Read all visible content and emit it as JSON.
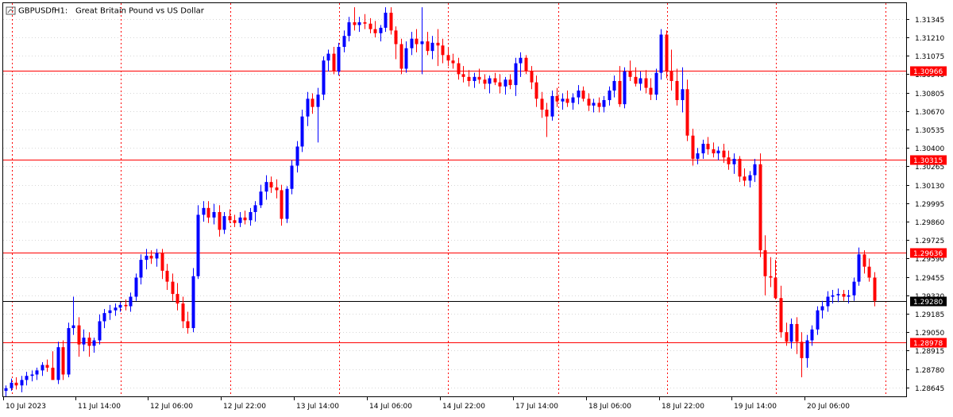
{
  "header": {
    "symbol": "GBPUSDf",
    "timeframe": "H1:",
    "description": "Great Britain Pound vs US Dollar"
  },
  "colors": {
    "bull": "#0000ff",
    "bear": "#ff0000",
    "level_line": "#ff0000",
    "current_line": "#000000",
    "grid": "#d7d7d7",
    "session_separator": "#ff0000"
  },
  "price_axis": {
    "ticks": [
      "1.31345",
      "1.31210",
      "1.31075",
      "1.30940",
      "1.30805",
      "1.30670",
      "1.30535",
      "1.30400",
      "1.30265",
      "1.30130",
      "1.29995",
      "1.29860",
      "1.29725",
      "1.29590",
      "1.29455",
      "1.29320",
      "1.29185",
      "1.29050",
      "1.28915",
      "1.28780",
      "1.28645"
    ]
  },
  "time_axis": {
    "ticks": [
      "10 Jul 2023",
      "11 Jul 14:00",
      "12 Jul 06:00",
      "12 Jul 22:00",
      "13 Jul 14:00",
      "14 Jul 06:00",
      "14 Jul 22:00",
      "17 Jul 14:00",
      "18 Jul 06:00",
      "18 Jul 22:00",
      "19 Jul 14:00",
      "20 Jul 06:00"
    ]
  },
  "levels": [
    {
      "price": 1.30966,
      "label": "1.30966",
      "kind": "resistance"
    },
    {
      "price": 1.30315,
      "label": "1.30315",
      "kind": "resistance"
    },
    {
      "price": 1.29636,
      "label": "1.29636",
      "kind": "resistance"
    },
    {
      "price": 1.28978,
      "label": "1.28978",
      "kind": "support"
    },
    {
      "price": 1.2928,
      "label": "1.29280",
      "kind": "current"
    }
  ],
  "chart_data": {
    "type": "candlestick",
    "title": "GBPUSDf, H1: Great Britain Pound vs US Dollar",
    "ylim": [
      1.2858,
      1.3146
    ],
    "candles": [
      {
        "o": 1.2862,
        "h": 1.2866,
        "l": 1.2858,
        "c": 1.2864
      },
      {
        "o": 1.2864,
        "h": 1.2871,
        "l": 1.2862,
        "c": 1.2868
      },
      {
        "o": 1.2868,
        "h": 1.2872,
        "l": 1.2863,
        "c": 1.2866
      },
      {
        "o": 1.2866,
        "h": 1.2873,
        "l": 1.2861,
        "c": 1.287
      },
      {
        "o": 1.287,
        "h": 1.2876,
        "l": 1.2866,
        "c": 1.2873
      },
      {
        "o": 1.2873,
        "h": 1.2877,
        "l": 1.2869,
        "c": 1.2874
      },
      {
        "o": 1.2874,
        "h": 1.2879,
        "l": 1.287,
        "c": 1.2877
      },
      {
        "o": 1.2877,
        "h": 1.2883,
        "l": 1.2873,
        "c": 1.2881
      },
      {
        "o": 1.2881,
        "h": 1.2885,
        "l": 1.2876,
        "c": 1.2879
      },
      {
        "o": 1.2879,
        "h": 1.2891,
        "l": 1.2872,
        "c": 1.287
      },
      {
        "o": 1.287,
        "h": 1.2898,
        "l": 1.2867,
        "c": 1.2894
      },
      {
        "o": 1.2894,
        "h": 1.2899,
        "l": 1.287,
        "c": 1.2874
      },
      {
        "o": 1.2874,
        "h": 1.2912,
        "l": 1.2872,
        "c": 1.2908
      },
      {
        "o": 1.2908,
        "h": 1.2931,
        "l": 1.2903,
        "c": 1.291
      },
      {
        "o": 1.291,
        "h": 1.2916,
        "l": 1.2887,
        "c": 1.2896
      },
      {
        "o": 1.2896,
        "h": 1.2907,
        "l": 1.2891,
        "c": 1.2901
      },
      {
        "o": 1.2901,
        "h": 1.2905,
        "l": 1.2887,
        "c": 1.2895
      },
      {
        "o": 1.2895,
        "h": 1.2901,
        "l": 1.289,
        "c": 1.2899
      },
      {
        "o": 1.2899,
        "h": 1.2918,
        "l": 1.2896,
        "c": 1.2913
      },
      {
        "o": 1.2913,
        "h": 1.2922,
        "l": 1.2908,
        "c": 1.2919
      },
      {
        "o": 1.2919,
        "h": 1.2925,
        "l": 1.2914,
        "c": 1.2921
      },
      {
        "o": 1.2921,
        "h": 1.2926,
        "l": 1.2917,
        "c": 1.2923
      },
      {
        "o": 1.2923,
        "h": 1.2927,
        "l": 1.292,
        "c": 1.2925
      },
      {
        "o": 1.2925,
        "h": 1.2929,
        "l": 1.2921,
        "c": 1.2924
      },
      {
        "o": 1.2924,
        "h": 1.2934,
        "l": 1.292,
        "c": 1.2931
      },
      {
        "o": 1.2931,
        "h": 1.2948,
        "l": 1.2928,
        "c": 1.2945
      },
      {
        "o": 1.2945,
        "h": 1.2962,
        "l": 1.294,
        "c": 1.2958
      },
      {
        "o": 1.2958,
        "h": 1.2966,
        "l": 1.2951,
        "c": 1.2961
      },
      {
        "o": 1.2961,
        "h": 1.2965,
        "l": 1.2955,
        "c": 1.2959
      },
      {
        "o": 1.2959,
        "h": 1.2966,
        "l": 1.2953,
        "c": 1.2963
      },
      {
        "o": 1.2963,
        "h": 1.2966,
        "l": 1.2944,
        "c": 1.295
      },
      {
        "o": 1.295,
        "h": 1.2955,
        "l": 1.2936,
        "c": 1.2942
      },
      {
        "o": 1.2942,
        "h": 1.2948,
        "l": 1.2928,
        "c": 1.2933
      },
      {
        "o": 1.2933,
        "h": 1.2941,
        "l": 1.2921,
        "c": 1.2926
      },
      {
        "o": 1.2926,
        "h": 1.2931,
        "l": 1.2908,
        "c": 1.2913
      },
      {
        "o": 1.2913,
        "h": 1.292,
        "l": 1.2904,
        "c": 1.2908
      },
      {
        "o": 1.2908,
        "h": 1.2952,
        "l": 1.2905,
        "c": 1.2946
      },
      {
        "o": 1.2946,
        "h": 1.2998,
        "l": 1.2944,
        "c": 1.2991
      },
      {
        "o": 1.2991,
        "h": 1.3001,
        "l": 1.2986,
        "c": 1.2996
      },
      {
        "o": 1.2996,
        "h": 1.3001,
        "l": 1.2985,
        "c": 1.2989
      },
      {
        "o": 1.2989,
        "h": 1.2999,
        "l": 1.2984,
        "c": 1.2993
      },
      {
        "o": 1.2993,
        "h": 1.2998,
        "l": 1.2975,
        "c": 1.298
      },
      {
        "o": 1.298,
        "h": 1.2993,
        "l": 1.2977,
        "c": 1.299
      },
      {
        "o": 1.299,
        "h": 1.2995,
        "l": 1.2985,
        "c": 1.2987
      },
      {
        "o": 1.2987,
        "h": 1.2991,
        "l": 1.2982,
        "c": 1.2985
      },
      {
        "o": 1.2985,
        "h": 1.2993,
        "l": 1.2982,
        "c": 1.2989
      },
      {
        "o": 1.2989,
        "h": 1.2994,
        "l": 1.2984,
        "c": 1.2987
      },
      {
        "o": 1.2987,
        "h": 1.2996,
        "l": 1.2983,
        "c": 1.2993
      },
      {
        "o": 1.2993,
        "h": 1.3001,
        "l": 1.2986,
        "c": 1.2998
      },
      {
        "o": 1.2998,
        "h": 1.3013,
        "l": 1.2996,
        "c": 1.3008
      },
      {
        "o": 1.3008,
        "h": 1.302,
        "l": 1.3002,
        "c": 1.3015
      },
      {
        "o": 1.3015,
        "h": 1.3019,
        "l": 1.3007,
        "c": 1.3011
      },
      {
        "o": 1.3011,
        "h": 1.3017,
        "l": 1.3003,
        "c": 1.3009
      },
      {
        "o": 1.3009,
        "h": 1.3013,
        "l": 1.2983,
        "c": 1.2988
      },
      {
        "o": 1.2988,
        "h": 1.3012,
        "l": 1.2985,
        "c": 1.301
      },
      {
        "o": 1.301,
        "h": 1.3031,
        "l": 1.3006,
        "c": 1.3027
      },
      {
        "o": 1.3027,
        "h": 1.3045,
        "l": 1.3022,
        "c": 1.3041
      },
      {
        "o": 1.3041,
        "h": 1.3068,
        "l": 1.3037,
        "c": 1.3063
      },
      {
        "o": 1.3063,
        "h": 1.3081,
        "l": 1.3056,
        "c": 1.3076
      },
      {
        "o": 1.3076,
        "h": 1.308,
        "l": 1.3065,
        "c": 1.307
      },
      {
        "o": 1.307,
        "h": 1.3084,
        "l": 1.3044,
        "c": 1.3079
      },
      {
        "o": 1.3079,
        "h": 1.3107,
        "l": 1.3075,
        "c": 1.3104
      },
      {
        "o": 1.3104,
        "h": 1.3112,
        "l": 1.3096,
        "c": 1.3109
      },
      {
        "o": 1.3109,
        "h": 1.3114,
        "l": 1.3094,
        "c": 1.3096
      },
      {
        "o": 1.3096,
        "h": 1.3117,
        "l": 1.3093,
        "c": 1.3114
      },
      {
        "o": 1.3114,
        "h": 1.3126,
        "l": 1.311,
        "c": 1.3122
      },
      {
        "o": 1.3122,
        "h": 1.3136,
        "l": 1.3118,
        "c": 1.3132
      },
      {
        "o": 1.3132,
        "h": 1.3143,
        "l": 1.3126,
        "c": 1.313
      },
      {
        "o": 1.313,
        "h": 1.3136,
        "l": 1.3125,
        "c": 1.3132
      },
      {
        "o": 1.3132,
        "h": 1.3138,
        "l": 1.3127,
        "c": 1.3131
      },
      {
        "o": 1.3131,
        "h": 1.3135,
        "l": 1.3124,
        "c": 1.3127
      },
      {
        "o": 1.3127,
        "h": 1.3133,
        "l": 1.3121,
        "c": 1.3124
      },
      {
        "o": 1.3124,
        "h": 1.313,
        "l": 1.3118,
        "c": 1.3128
      },
      {
        "o": 1.3128,
        "h": 1.3143,
        "l": 1.3125,
        "c": 1.3139
      },
      {
        "o": 1.3139,
        "h": 1.3143,
        "l": 1.3123,
        "c": 1.3126
      },
      {
        "o": 1.3126,
        "h": 1.3129,
        "l": 1.3105,
        "c": 1.3116
      },
      {
        "o": 1.3116,
        "h": 1.312,
        "l": 1.3094,
        "c": 1.3098
      },
      {
        "o": 1.3098,
        "h": 1.3118,
        "l": 1.3095,
        "c": 1.3113
      },
      {
        "o": 1.3113,
        "h": 1.3125,
        "l": 1.3108,
        "c": 1.312
      },
      {
        "o": 1.312,
        "h": 1.3127,
        "l": 1.311,
        "c": 1.3116
      },
      {
        "o": 1.3116,
        "h": 1.3143,
        "l": 1.3094,
        "c": 1.3118
      },
      {
        "o": 1.3118,
        "h": 1.3125,
        "l": 1.3108,
        "c": 1.3111
      },
      {
        "o": 1.3111,
        "h": 1.3122,
        "l": 1.3105,
        "c": 1.3117
      },
      {
        "o": 1.3117,
        "h": 1.3127,
        "l": 1.31,
        "c": 1.3115
      },
      {
        "o": 1.3115,
        "h": 1.312,
        "l": 1.3102,
        "c": 1.3108
      },
      {
        "o": 1.3108,
        "h": 1.3114,
        "l": 1.31,
        "c": 1.3104
      },
      {
        "o": 1.3104,
        "h": 1.3109,
        "l": 1.3098,
        "c": 1.3102
      },
      {
        "o": 1.3102,
        "h": 1.3106,
        "l": 1.309,
        "c": 1.3094
      },
      {
        "o": 1.3094,
        "h": 1.31,
        "l": 1.3088,
        "c": 1.3092
      },
      {
        "o": 1.3092,
        "h": 1.3097,
        "l": 1.3085,
        "c": 1.3089
      },
      {
        "o": 1.3089,
        "h": 1.3095,
        "l": 1.3084,
        "c": 1.3092
      },
      {
        "o": 1.3092,
        "h": 1.3098,
        "l": 1.3087,
        "c": 1.309
      },
      {
        "o": 1.309,
        "h": 1.3094,
        "l": 1.3083,
        "c": 1.3087
      },
      {
        "o": 1.3087,
        "h": 1.3093,
        "l": 1.308,
        "c": 1.3091
      },
      {
        "o": 1.3091,
        "h": 1.3095,
        "l": 1.3086,
        "c": 1.3088
      },
      {
        "o": 1.3088,
        "h": 1.3094,
        "l": 1.308,
        "c": 1.3085
      },
      {
        "o": 1.3085,
        "h": 1.3092,
        "l": 1.3079,
        "c": 1.309
      },
      {
        "o": 1.309,
        "h": 1.3094,
        "l": 1.3083,
        "c": 1.3086
      },
      {
        "o": 1.3086,
        "h": 1.3106,
        "l": 1.3078,
        "c": 1.3102
      },
      {
        "o": 1.3102,
        "h": 1.311,
        "l": 1.3092,
        "c": 1.3106
      },
      {
        "o": 1.3106,
        "h": 1.3108,
        "l": 1.3094,
        "c": 1.3096
      },
      {
        "o": 1.3096,
        "h": 1.31,
        "l": 1.3083,
        "c": 1.3088
      },
      {
        "o": 1.3088,
        "h": 1.3093,
        "l": 1.307,
        "c": 1.3076
      },
      {
        "o": 1.3076,
        "h": 1.3081,
        "l": 1.3062,
        "c": 1.3068
      },
      {
        "o": 1.3068,
        "h": 1.3073,
        "l": 1.3048,
        "c": 1.3063
      },
      {
        "o": 1.3063,
        "h": 1.3082,
        "l": 1.306,
        "c": 1.3078
      },
      {
        "o": 1.3078,
        "h": 1.3084,
        "l": 1.307,
        "c": 1.3074
      },
      {
        "o": 1.3074,
        "h": 1.308,
        "l": 1.3068,
        "c": 1.3076
      },
      {
        "o": 1.3076,
        "h": 1.3082,
        "l": 1.307,
        "c": 1.3073
      },
      {
        "o": 1.3073,
        "h": 1.308,
        "l": 1.3068,
        "c": 1.3077
      },
      {
        "o": 1.3077,
        "h": 1.3086,
        "l": 1.3072,
        "c": 1.3082
      },
      {
        "o": 1.3082,
        "h": 1.3085,
        "l": 1.3074,
        "c": 1.3076
      },
      {
        "o": 1.3076,
        "h": 1.308,
        "l": 1.3067,
        "c": 1.3071
      },
      {
        "o": 1.3071,
        "h": 1.3076,
        "l": 1.3066,
        "c": 1.3073
      },
      {
        "o": 1.3073,
        "h": 1.3077,
        "l": 1.3066,
        "c": 1.307
      },
      {
        "o": 1.307,
        "h": 1.3078,
        "l": 1.3066,
        "c": 1.3075
      },
      {
        "o": 1.3075,
        "h": 1.3085,
        "l": 1.3071,
        "c": 1.3082
      },
      {
        "o": 1.3082,
        "h": 1.3093,
        "l": 1.3077,
        "c": 1.3089
      },
      {
        "o": 1.3089,
        "h": 1.31,
        "l": 1.307,
        "c": 1.3072
      },
      {
        "o": 1.3072,
        "h": 1.3099,
        "l": 1.3069,
        "c": 1.3096
      },
      {
        "o": 1.3096,
        "h": 1.3104,
        "l": 1.3089,
        "c": 1.3092
      },
      {
        "o": 1.3092,
        "h": 1.3099,
        "l": 1.3085,
        "c": 1.3087
      },
      {
        "o": 1.3087,
        "h": 1.3096,
        "l": 1.3082,
        "c": 1.3091
      },
      {
        "o": 1.3091,
        "h": 1.3097,
        "l": 1.308,
        "c": 1.3084
      },
      {
        "o": 1.3084,
        "h": 1.3091,
        "l": 1.3075,
        "c": 1.3079
      },
      {
        "o": 1.3079,
        "h": 1.3098,
        "l": 1.3075,
        "c": 1.3095
      },
      {
        "o": 1.3095,
        "h": 1.3127,
        "l": 1.309,
        "c": 1.3123
      },
      {
        "o": 1.3123,
        "h": 1.3126,
        "l": 1.3091,
        "c": 1.3096
      },
      {
        "o": 1.3096,
        "h": 1.3112,
        "l": 1.3082,
        "c": 1.3089
      },
      {
        "o": 1.3089,
        "h": 1.3098,
        "l": 1.3071,
        "c": 1.3075
      },
      {
        "o": 1.3075,
        "h": 1.3099,
        "l": 1.3066,
        "c": 1.3083
      },
      {
        "o": 1.3083,
        "h": 1.309,
        "l": 1.3045,
        "c": 1.3049
      },
      {
        "o": 1.3049,
        "h": 1.3054,
        "l": 1.3027,
        "c": 1.3032
      },
      {
        "o": 1.3032,
        "h": 1.304,
        "l": 1.3028,
        "c": 1.3036
      },
      {
        "o": 1.3036,
        "h": 1.3046,
        "l": 1.3032,
        "c": 1.3043
      },
      {
        "o": 1.3043,
        "h": 1.3048,
        "l": 1.3035,
        "c": 1.3039
      },
      {
        "o": 1.3039,
        "h": 1.3044,
        "l": 1.3033,
        "c": 1.3036
      },
      {
        "o": 1.3036,
        "h": 1.3041,
        "l": 1.3031,
        "c": 1.3038
      },
      {
        "o": 1.3038,
        "h": 1.3043,
        "l": 1.3029,
        "c": 1.3033
      },
      {
        "o": 1.3033,
        "h": 1.3038,
        "l": 1.3024,
        "c": 1.3028
      },
      {
        "o": 1.3028,
        "h": 1.3036,
        "l": 1.3021,
        "c": 1.3032
      },
      {
        "o": 1.3032,
        "h": 1.3034,
        "l": 1.3015,
        "c": 1.3019
      },
      {
        "o": 1.3019,
        "h": 1.3025,
        "l": 1.3012,
        "c": 1.3016
      },
      {
        "o": 1.3016,
        "h": 1.3023,
        "l": 1.3011,
        "c": 1.302
      },
      {
        "o": 1.302,
        "h": 1.3032,
        "l": 1.3015,
        "c": 1.3028
      },
      {
        "o": 1.3028,
        "h": 1.3036,
        "l": 1.296,
        "c": 1.2965
      },
      {
        "o": 1.2965,
        "h": 1.2976,
        "l": 1.2932,
        "c": 1.2946
      },
      {
        "o": 1.2946,
        "h": 1.296,
        "l": 1.2938,
        "c": 1.2945
      },
      {
        "o": 1.2945,
        "h": 1.2958,
        "l": 1.2929,
        "c": 1.293
      },
      {
        "o": 1.293,
        "h": 1.2939,
        "l": 1.2901,
        "c": 1.2905
      },
      {
        "o": 1.2905,
        "h": 1.2912,
        "l": 1.2895,
        "c": 1.2898
      },
      {
        "o": 1.2898,
        "h": 1.2915,
        "l": 1.2893,
        "c": 1.2911
      },
      {
        "o": 1.2911,
        "h": 1.2916,
        "l": 1.2889,
        "c": 1.2898
      },
      {
        "o": 1.2898,
        "h": 1.2905,
        "l": 1.2872,
        "c": 1.2886
      },
      {
        "o": 1.2886,
        "h": 1.2903,
        "l": 1.2879,
        "c": 1.2899
      },
      {
        "o": 1.2899,
        "h": 1.291,
        "l": 1.2895,
        "c": 1.2907
      },
      {
        "o": 1.2907,
        "h": 1.2924,
        "l": 1.2903,
        "c": 1.2921
      },
      {
        "o": 1.2921,
        "h": 1.2928,
        "l": 1.2915,
        "c": 1.2924
      },
      {
        "o": 1.2924,
        "h": 1.2935,
        "l": 1.292,
        "c": 1.2931
      },
      {
        "o": 1.2931,
        "h": 1.2936,
        "l": 1.2926,
        "c": 1.2932
      },
      {
        "o": 1.2932,
        "h": 1.2937,
        "l": 1.2927,
        "c": 1.2933
      },
      {
        "o": 1.2933,
        "h": 1.2936,
        "l": 1.2928,
        "c": 1.2931
      },
      {
        "o": 1.2931,
        "h": 1.2936,
        "l": 1.2926,
        "c": 1.2932
      },
      {
        "o": 1.2932,
        "h": 1.2945,
        "l": 1.2928,
        "c": 1.2942
      },
      {
        "o": 1.2942,
        "h": 1.2967,
        "l": 1.2939,
        "c": 1.2962
      },
      {
        "o": 1.2962,
        "h": 1.2965,
        "l": 1.2948,
        "c": 1.2953
      },
      {
        "o": 1.2953,
        "h": 1.2959,
        "l": 1.2942,
        "c": 1.2945
      },
      {
        "o": 1.2945,
        "h": 1.2949,
        "l": 1.2924,
        "c": 1.2928
      }
    ]
  }
}
